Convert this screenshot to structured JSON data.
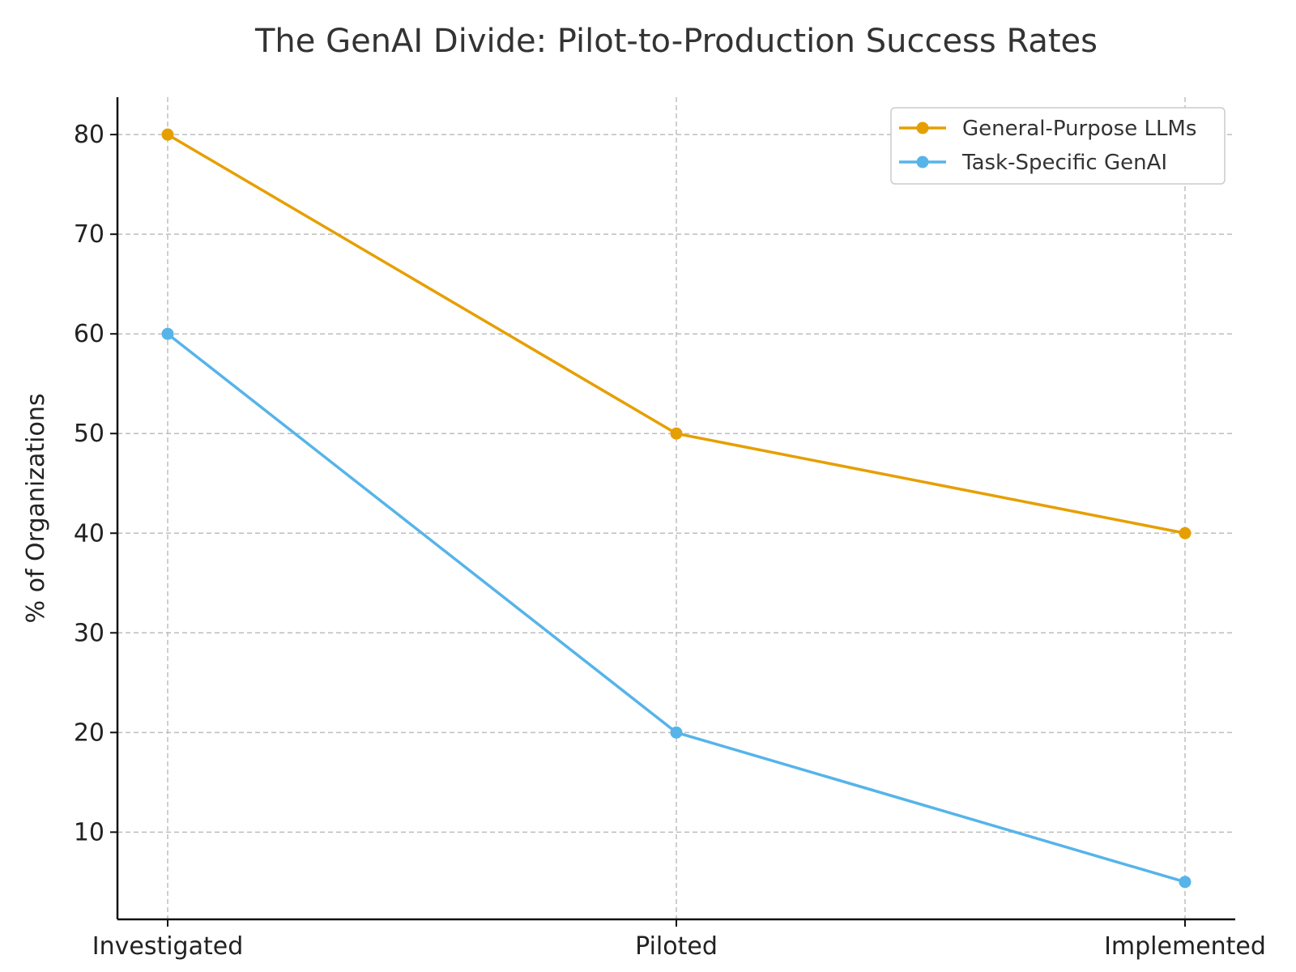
{
  "chart_data": {
    "type": "line",
    "title": "The GenAI Divide: Pilot-to-Production Success Rates",
    "xlabel": "",
    "ylabel": "% of Organizations",
    "categories": [
      "Investigated",
      "Piloted",
      "Implemented"
    ],
    "ylim": [
      1.25,
      83.75
    ],
    "yticks": [
      10,
      20,
      30,
      40,
      50,
      60,
      70,
      80
    ],
    "grid": true,
    "legend_position": "top-right",
    "series": [
      {
        "name": "General-Purpose LLMs",
        "values": [
          80,
          50,
          40
        ],
        "color": "#E69F00"
      },
      {
        "name": "Task-Specific GenAI",
        "values": [
          60,
          20,
          5
        ],
        "color": "#56B4E9"
      }
    ]
  }
}
